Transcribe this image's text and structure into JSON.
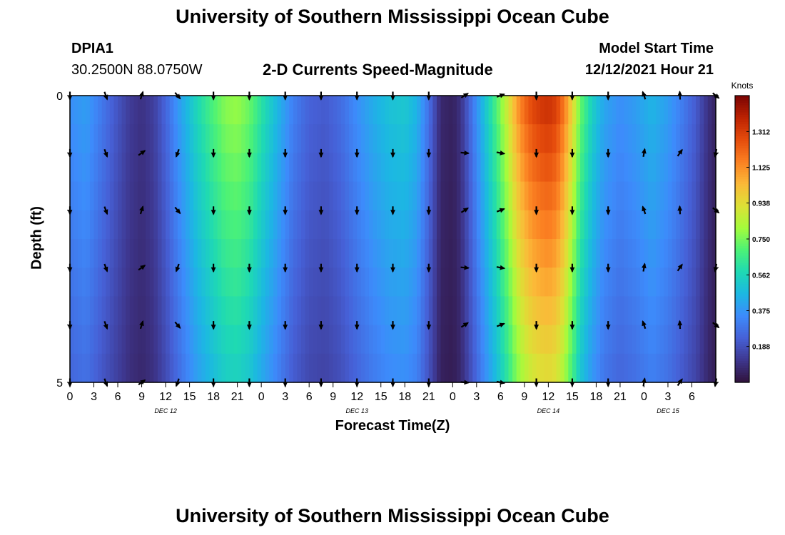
{
  "header": {
    "title": "University of Southern Mississippi Ocean Cube",
    "station_id": "DPIA1",
    "station_coords": "30.2500N  88.0750W",
    "subtitle": "2-D Currents Speed-Magnitude",
    "model_start_label": "Model Start Time",
    "model_start_value": "12/12/2021 Hour 21"
  },
  "footer": {
    "repeated_title": "University of Southern Mississippi Ocean Cube"
  },
  "chart_data": {
    "type": "heatmap",
    "title": "2-D Currents Speed-Magnitude",
    "xlabel": "Forecast Time(Z)",
    "ylabel": "Depth (ft)",
    "colorbar_label": "Knots",
    "colorbar_ticks": [
      "1.312",
      "1.125",
      "0.938",
      "0.750",
      "0.562",
      "0.375",
      "0.188"
    ],
    "colorbar_tick_values": [
      1.312,
      1.125,
      0.938,
      0.75,
      0.562,
      0.375,
      0.188
    ],
    "vrange": [
      0.0,
      1.5
    ],
    "colormap": [
      "#30123b",
      "#3e378f",
      "#4660d6",
      "#3d8bfb",
      "#1cb7e3",
      "#1ed9b4",
      "#4cf276",
      "#a4fc3c",
      "#dde036",
      "#fbb938",
      "#fb8022",
      "#e54c0c",
      "#bc2202",
      "#7a0403"
    ],
    "x_range_hours": [
      0,
      81
    ],
    "x_tick_labels": [
      "0",
      "3",
      "6",
      "9",
      "12",
      "15",
      "18",
      "21",
      "0",
      "3",
      "6",
      "9",
      "12",
      "15",
      "18",
      "21",
      "0",
      "3",
      "6",
      "9",
      "12",
      "15",
      "18",
      "21",
      "0",
      "3",
      "6"
    ],
    "day_labels": [
      "DEC 12",
      "DEC 13",
      "DEC 14",
      "DEC 15"
    ],
    "day_label_hours": [
      12.0,
      36.0,
      60.0,
      75.0
    ],
    "y_range_ft": [
      0,
      5
    ],
    "y_tick_labels": [
      "0",
      "5"
    ],
    "speed_profile_hours": [
      0,
      2,
      4,
      6,
      7.5,
      9,
      10.5,
      12,
      14,
      16,
      18,
      19.5,
      21,
      22.5,
      24,
      26,
      28,
      30,
      32,
      34,
      36,
      38,
      40,
      42,
      43.5,
      45,
      46.5,
      48,
      49,
      50.5,
      52,
      53.5,
      55,
      56,
      57,
      58,
      59,
      60,
      61,
      62,
      63,
      64,
      65.5,
      67,
      69,
      71,
      73,
      75,
      77,
      78.5,
      80,
      81
    ],
    "speed_profile_knots": [
      0.36,
      0.4,
      0.3,
      0.2,
      0.13,
      0.1,
      0.14,
      0.25,
      0.42,
      0.58,
      0.7,
      0.78,
      0.8,
      0.74,
      0.62,
      0.47,
      0.32,
      0.24,
      0.22,
      0.27,
      0.36,
      0.44,
      0.5,
      0.52,
      0.46,
      0.28,
      0.07,
      0.05,
      0.1,
      0.3,
      0.5,
      0.7,
      0.92,
      1.1,
      1.22,
      1.3,
      1.34,
      1.36,
      1.32,
      1.18,
      0.97,
      0.74,
      0.55,
      0.42,
      0.36,
      0.4,
      0.46,
      0.4,
      0.3,
      0.22,
      0.1,
      0.05
    ],
    "arrow_time_hours": [
      0,
      4.5,
      9,
      13.5,
      18,
      22.5,
      27,
      31.5,
      36,
      40.5,
      45,
      49.5,
      54,
      58.5,
      63,
      67.5,
      72,
      76.5,
      81
    ],
    "arrow_depth_ft": [
      0.0,
      1.0,
      2.0,
      3.0,
      4.0,
      5.0
    ],
    "arrow_columns_deg": [
      180,
      160,
      30,
      160,
      180,
      180,
      180,
      180,
      180,
      180,
      180,
      70,
      80,
      180,
      180,
      180,
      350,
      10,
      150
    ],
    "arrow_column_variation_deg": [
      0,
      0,
      25,
      40,
      0,
      0,
      0,
      0,
      0,
      0,
      0,
      25,
      20,
      0,
      0,
      0,
      20,
      25,
      40
    ]
  }
}
